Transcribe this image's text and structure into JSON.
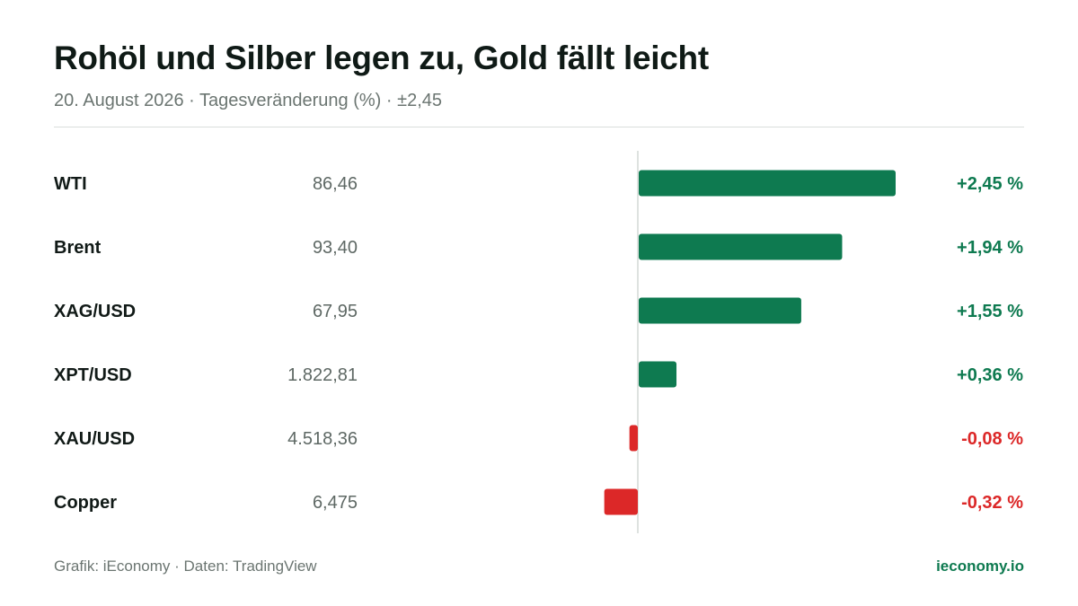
{
  "header": {
    "title": "Rohöl und Silber legen zu, Gold fällt leicht",
    "subtitle": "20. August 2026 · Tagesveränderung (%) · ±2,45"
  },
  "footer": {
    "source": "Grafik: iEconomy · Daten: TradingView",
    "brand": "ieconomy.io"
  },
  "colors": {
    "positive": "#0e7a50",
    "negative": "#dc2828",
    "axis": "#d4d8d6",
    "label": "#111a17",
    "price": "#5e6864"
  },
  "chart_data": {
    "type": "bar",
    "orientation": "horizontal",
    "unit": "%",
    "xlim": [
      -0.9,
      2.45
    ],
    "categories": [
      "WTI",
      "Brent",
      "XAG/USD",
      "XPT/USD",
      "XAU/USD",
      "Copper"
    ],
    "prices": [
      "86,46",
      "93,40",
      "67,95",
      "1.822,81",
      "4.518,36",
      "6,475"
    ],
    "values": [
      2.45,
      1.94,
      1.55,
      0.36,
      -0.08,
      -0.32
    ],
    "value_labels": [
      "+2,45 %",
      "+1,94 %",
      "+1,55 %",
      "+0,36 %",
      "-0,08 %",
      "-0,32 %"
    ],
    "grid": false,
    "legend": "none"
  }
}
